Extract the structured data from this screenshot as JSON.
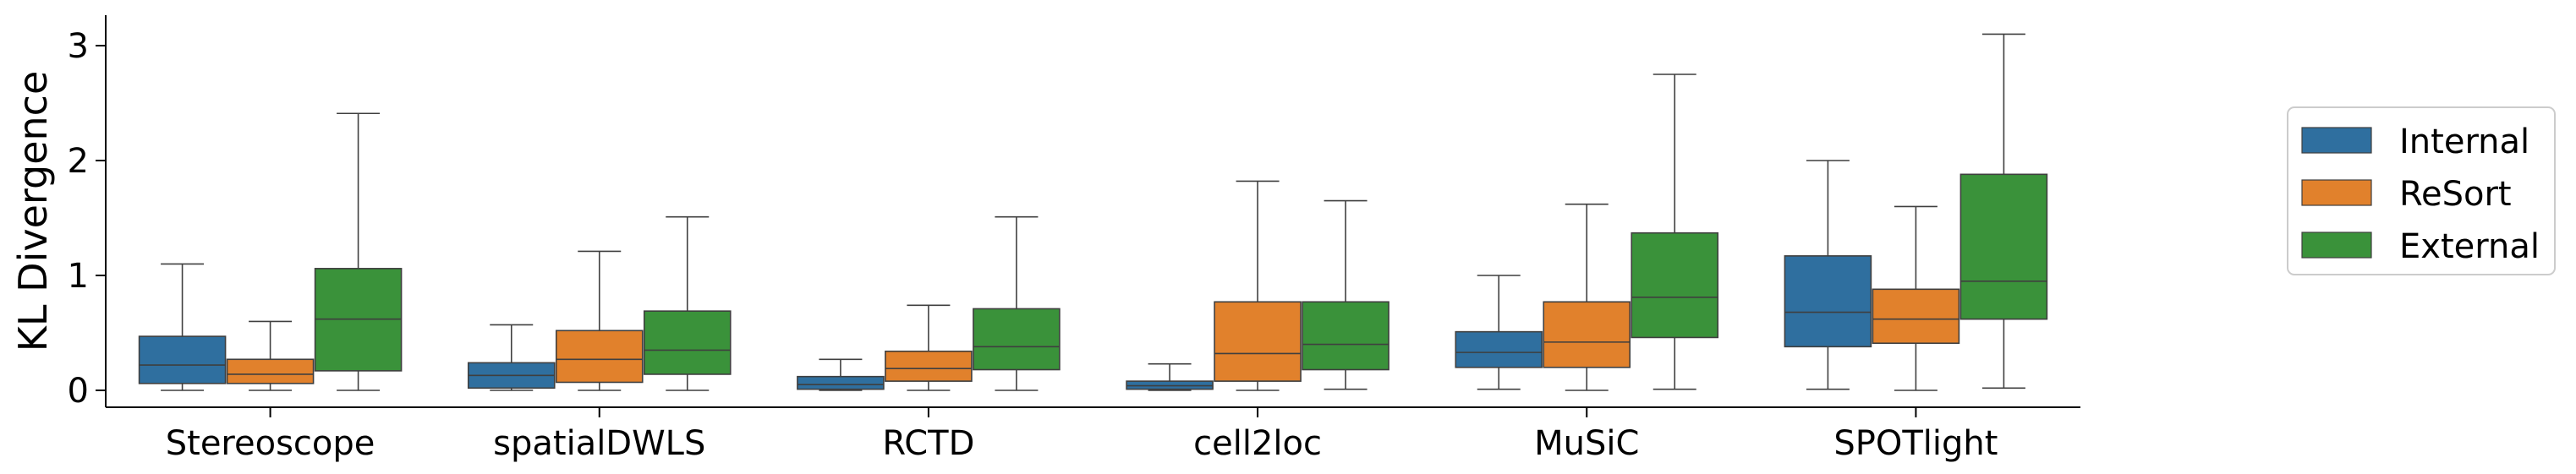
{
  "chart_data": {
    "type": "boxplot",
    "title": "",
    "xlabel": "",
    "ylabel": "KL Divergence",
    "ylim": [
      -0.15,
      3.25
    ],
    "yticks": [
      0,
      1,
      2,
      3
    ],
    "legend_position": "right",
    "categories": [
      "Stereoscope",
      "spatialDWLS",
      "RCTD",
      "cell2loc",
      "MuSiC",
      "SPOTlight"
    ],
    "series": [
      {
        "name": "Internal",
        "color": "#2f6f9f",
        "boxes": [
          {
            "whislo": 0.0,
            "q1": 0.06,
            "med": 0.22,
            "q3": 0.47,
            "whishi": 1.1
          },
          {
            "whislo": 0.0,
            "q1": 0.02,
            "med": 0.13,
            "q3": 0.24,
            "whishi": 0.57
          },
          {
            "whislo": 0.0,
            "q1": 0.01,
            "med": 0.05,
            "q3": 0.12,
            "whishi": 0.27
          },
          {
            "whislo": 0.0,
            "q1": 0.01,
            "med": 0.04,
            "q3": 0.08,
            "whishi": 0.23
          },
          {
            "whislo": 0.01,
            "q1": 0.2,
            "med": 0.33,
            "q3": 0.51,
            "whishi": 1.0
          },
          {
            "whislo": 0.01,
            "q1": 0.38,
            "med": 0.68,
            "q3": 1.17,
            "whishi": 2.0
          }
        ]
      },
      {
        "name": "ReSort",
        "color": "#e1812c",
        "boxes": [
          {
            "whislo": 0.0,
            "q1": 0.06,
            "med": 0.14,
            "q3": 0.27,
            "whishi": 0.6
          },
          {
            "whislo": 0.0,
            "q1": 0.07,
            "med": 0.27,
            "q3": 0.52,
            "whishi": 1.21
          },
          {
            "whislo": 0.0,
            "q1": 0.08,
            "med": 0.19,
            "q3": 0.34,
            "whishi": 0.74
          },
          {
            "whislo": 0.0,
            "q1": 0.08,
            "med": 0.32,
            "q3": 0.77,
            "whishi": 1.82
          },
          {
            "whislo": 0.0,
            "q1": 0.2,
            "med": 0.42,
            "q3": 0.77,
            "whishi": 1.62
          },
          {
            "whislo": 0.0,
            "q1": 0.41,
            "med": 0.62,
            "q3": 0.88,
            "whishi": 1.6
          }
        ]
      },
      {
        "name": "External",
        "color": "#3a923a",
        "boxes": [
          {
            "whislo": 0.0,
            "q1": 0.17,
            "med": 0.62,
            "q3": 1.06,
            "whishi": 2.41
          },
          {
            "whislo": 0.0,
            "q1": 0.14,
            "med": 0.35,
            "q3": 0.69,
            "whishi": 1.51
          },
          {
            "whislo": 0.0,
            "q1": 0.18,
            "med": 0.38,
            "q3": 0.71,
            "whishi": 1.51
          },
          {
            "whislo": 0.01,
            "q1": 0.18,
            "med": 0.4,
            "q3": 0.77,
            "whishi": 1.65
          },
          {
            "whislo": 0.01,
            "q1": 0.46,
            "med": 0.81,
            "q3": 1.37,
            "whishi": 2.75
          },
          {
            "whislo": 0.02,
            "q1": 0.62,
            "med": 0.95,
            "q3": 1.88,
            "whishi": 3.1
          }
        ]
      }
    ]
  }
}
